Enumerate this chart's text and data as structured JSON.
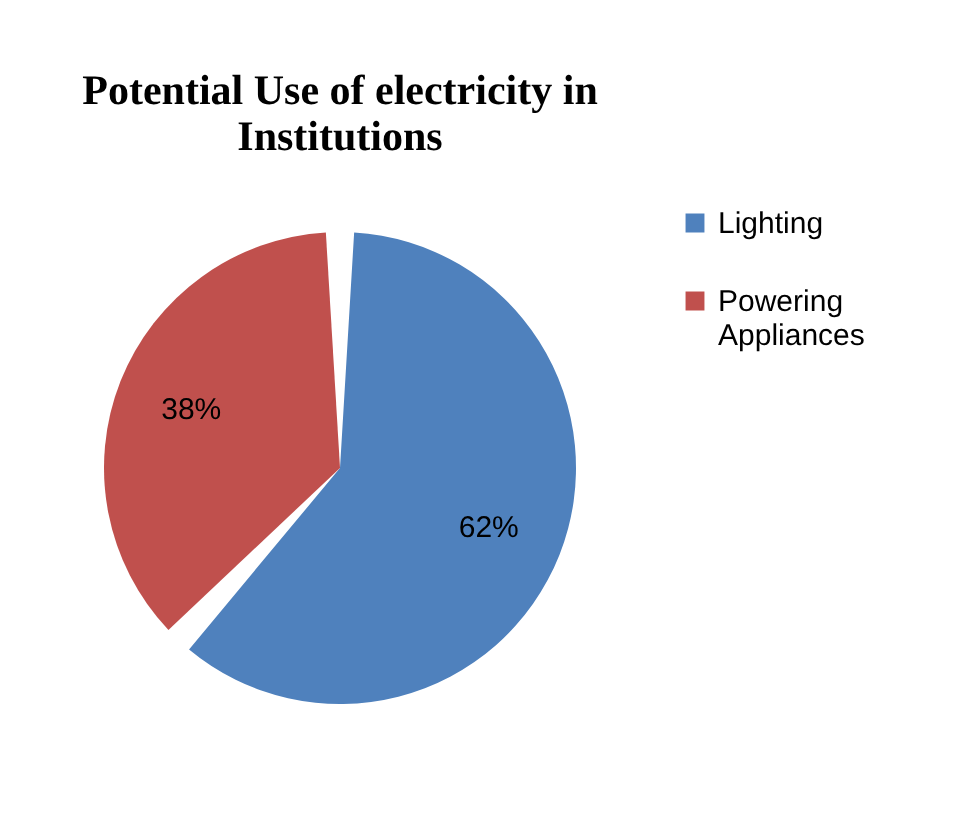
{
  "chart_data": {
    "type": "pie",
    "title": "Potential Use of electricity in Institutions",
    "categories": [
      "Lighting",
      "Powering Appliances"
    ],
    "values": [
      62,
      38
    ],
    "colors": [
      "#4f81bd",
      "#c0504d"
    ],
    "value_labels": [
      "62%",
      "38%"
    ],
    "legend": "right"
  }
}
